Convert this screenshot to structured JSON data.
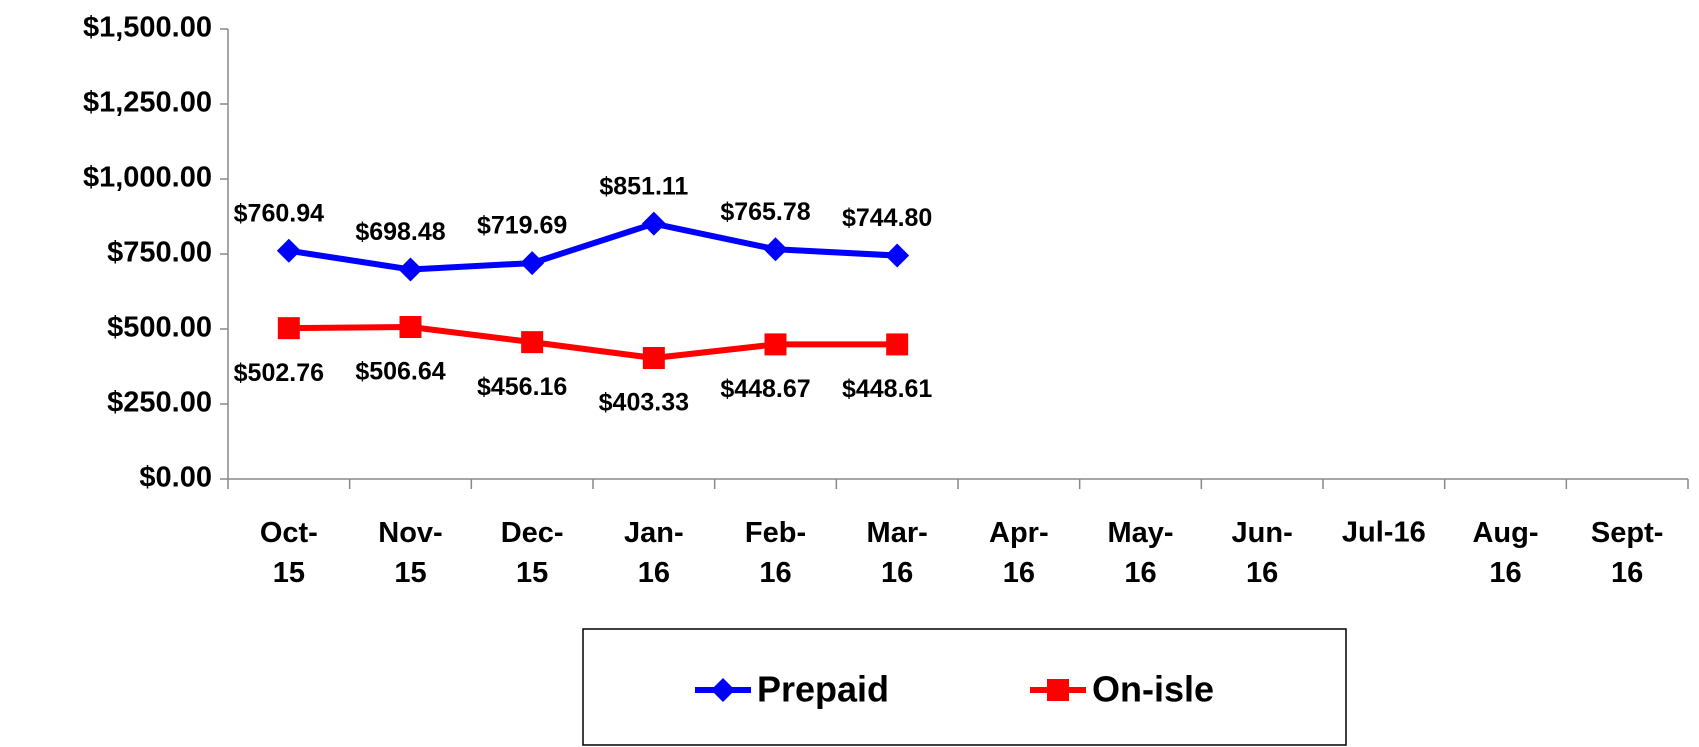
{
  "chart_data": {
    "type": "line",
    "categories": [
      "Oct-15",
      "Nov-15",
      "Dec-15",
      "Jan-16",
      "Feb-16",
      "Mar-16",
      "Apr-16",
      "May-16",
      "Jun-16",
      "Jul-16",
      "Aug-16",
      "Sept-16"
    ],
    "series": [
      {
        "name": "Prepaid",
        "color": "#0000ff",
        "marker": "diamond",
        "values": [
          760.94,
          698.48,
          719.69,
          851.11,
          765.78,
          744.8,
          null,
          null,
          null,
          null,
          null,
          null
        ],
        "value_labels": [
          "$760.94",
          "$698.48",
          "$719.69",
          "$851.11",
          "$765.78",
          "$744.80",
          null,
          null,
          null,
          null,
          null,
          null
        ],
        "label_position": "above"
      },
      {
        "name": "On-isle",
        "color": "#ff0000",
        "marker": "square",
        "values": [
          502.76,
          506.64,
          456.16,
          403.33,
          448.67,
          448.61,
          null,
          null,
          null,
          null,
          null,
          null
        ],
        "value_labels": [
          "$502.76",
          "$506.64",
          "$456.16",
          "$403.33",
          "$448.67",
          "$448.61",
          null,
          null,
          null,
          null,
          null,
          null
        ],
        "label_position": "below"
      }
    ],
    "ylim": [
      0,
      1500
    ],
    "yticks": [
      {
        "value": 0,
        "label": "$0.00"
      },
      {
        "value": 250,
        "label": "$250.00"
      },
      {
        "value": 500,
        "label": "$500.00"
      },
      {
        "value": 750,
        "label": "$750.00"
      },
      {
        "value": 1000,
        "label": "$1,000.00"
      },
      {
        "value": 1250,
        "label": "$1,250.00"
      },
      {
        "value": 1500,
        "label": "$1,500.00"
      }
    ],
    "grid": false,
    "legend": "bottom"
  }
}
